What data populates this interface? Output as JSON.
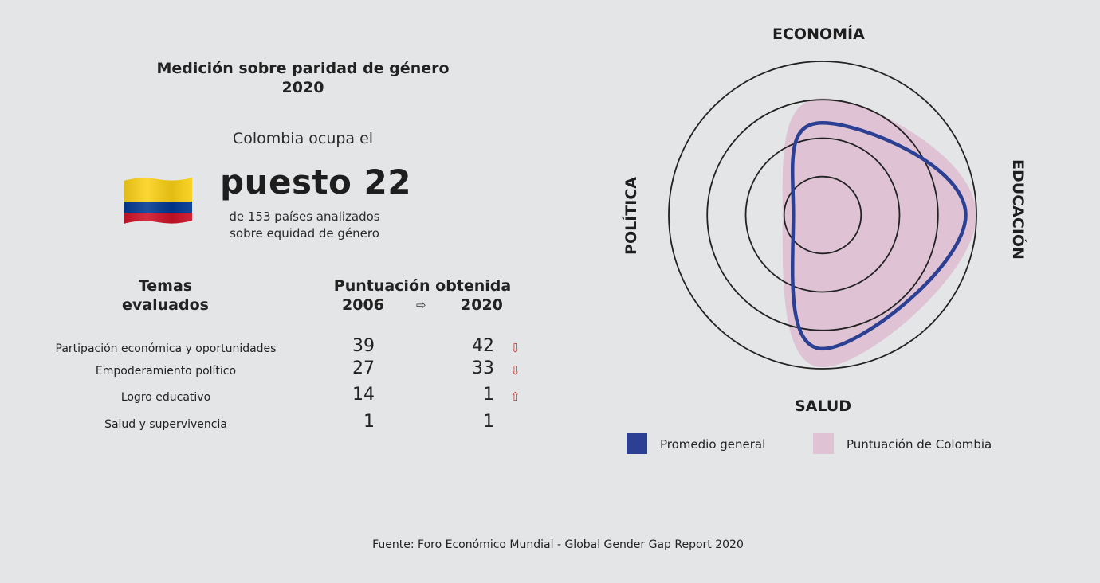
{
  "header": {
    "title_line1": "Medición sobre paridad de género",
    "title_line2": "2020",
    "ocupa": "Colombia ocupa el",
    "rank": "puesto 22",
    "rank_sub_line1": "de 153 países analizados",
    "rank_sub_line2": "sobre equidad de género",
    "flag_icon": "colombia-flag-icon",
    "flag_colors": [
      "#fcd116",
      "#003893",
      "#ce1126"
    ]
  },
  "table": {
    "topics_header_line1": "Temas",
    "topics_header_line2": "evaluados",
    "score_header": "Puntuación obtenida",
    "year_a": "2006",
    "year_b": "2020",
    "year_arrow": "⇨",
    "rows": [
      {
        "label": "Partipación económica y oportunidades",
        "v2006": "39",
        "v2020": "42",
        "trend": "⇩",
        "trend_dir": "down"
      },
      {
        "label": "Empoderamiento político",
        "v2006": "27",
        "v2020": "33",
        "trend": "⇩",
        "trend_dir": "down"
      },
      {
        "label": "Logro educativo",
        "v2006": "14",
        "v2020": "1",
        "trend": "⇧",
        "trend_dir": "up"
      },
      {
        "label": "Salud y supervivencia",
        "v2006": "1",
        "v2020": "1",
        "trend": "",
        "trend_dir": "none"
      }
    ]
  },
  "chart_data": {
    "type": "radar",
    "axes": [
      "ECONOMÍA",
      "EDUCACIÓN",
      "SALUD",
      "POLÍTICA"
    ],
    "series": [
      {
        "name": "Promedio general",
        "color": "#2b3f93",
        "values": [
          0.6,
          0.93,
          0.87,
          0.19
        ]
      },
      {
        "name": "Puntuación de Colombia",
        "color": "#dfc3d5",
        "values": [
          0.76,
          1.0,
          0.99,
          0.26
        ]
      }
    ],
    "rings": 4,
    "legend_position": "bottom"
  },
  "source": "Fuente: Foro Económico Mundial - Global Gender Gap Report 2020"
}
